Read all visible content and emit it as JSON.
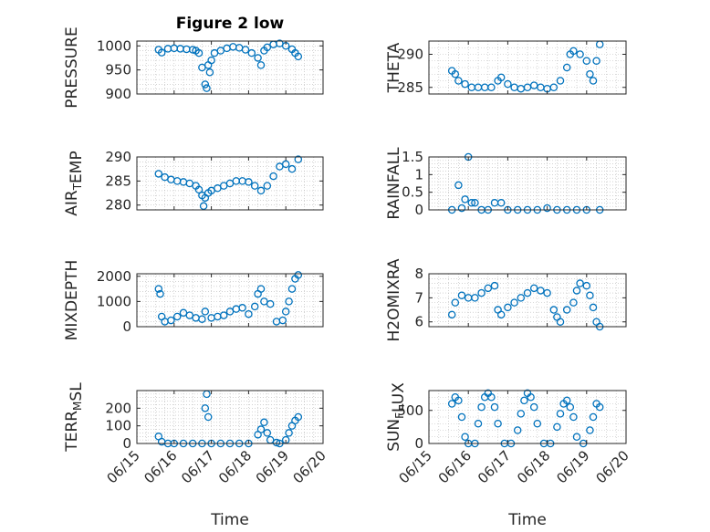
{
  "figure_title": "Figure 2 low",
  "colors": {
    "marker": "#0072BD",
    "axis": "#262626",
    "grid": "#b8b8b8"
  },
  "chart_data": [
    {
      "type": "scatter",
      "ylabel": "PRESSURE",
      "ylim": [
        900,
        1010
      ],
      "yticks": [
        "900",
        "950",
        "1000"
      ],
      "ytick_values": [
        900,
        950,
        1000
      ],
      "x": [
        "06/15 14:00",
        "06/15 16:00",
        "06/15 20:00",
        "06/16 00:00",
        "06/16 04:00",
        "06/16 08:00",
        "06/16 12:00",
        "06/16 14:00",
        "06/16 16:00",
        "06/16 18:00",
        "06/16 20:00",
        "06/16 21:00",
        "06/16 22:00",
        "06/16 23:00",
        "06/17 00:00",
        "06/17 02:00",
        "06/17 06:00",
        "06/17 10:00",
        "06/17 14:00",
        "06/17 18:00",
        "06/17 22:00",
        "06/18 02:00",
        "06/18 06:00",
        "06/18 08:00",
        "06/18 10:00",
        "06/18 12:00",
        "06/18 16:00",
        "06/18 20:00",
        "06/19 00:00",
        "06/19 04:00",
        "06/19 06:00",
        "06/19 08:00"
      ],
      "y": [
        992,
        986,
        994,
        995,
        994,
        993,
        992,
        990,
        985,
        955,
        920,
        912,
        960,
        945,
        970,
        985,
        990,
        995,
        998,
        996,
        992,
        985,
        975,
        960,
        990,
        997,
        1003,
        1005,
        1000,
        993,
        985,
        978
      ]
    },
    {
      "type": "scatter",
      "ylabel": "THETA",
      "ylim": [
        284,
        292
      ],
      "yticks": [
        "285",
        "290"
      ],
      "ytick_values": [
        285,
        290
      ],
      "x": [
        "06/15 14:00",
        "06/15 16:00",
        "06/15 18:00",
        "06/15 22:00",
        "06/16 02:00",
        "06/16 06:00",
        "06/16 10:00",
        "06/16 14:00",
        "06/16 18:00",
        "06/16 20:00",
        "06/17 00:00",
        "06/17 04:00",
        "06/17 08:00",
        "06/17 12:00",
        "06/17 16:00",
        "06/17 20:00",
        "06/18 00:00",
        "06/18 04:00",
        "06/18 08:00",
        "06/18 12:00",
        "06/18 14:00",
        "06/18 16:00",
        "06/18 20:00",
        "06/19 00:00",
        "06/19 02:00",
        "06/19 04:00",
        "06/19 06:00",
        "06/19 08:00"
      ],
      "y": [
        287.5,
        287,
        286,
        285.5,
        285,
        285,
        285,
        285,
        286,
        286.5,
        285.5,
        285,
        284.8,
        285,
        285.3,
        285,
        284.8,
        285,
        286,
        288,
        290,
        290.5,
        290,
        289,
        287,
        286,
        289,
        291.5
      ]
    },
    {
      "type": "scatter",
      "ylabel": "AIR_TEMP",
      "ylim": [
        279,
        290
      ],
      "yticks": [
        "280",
        "285",
        "290"
      ],
      "ytick_values": [
        280,
        285,
        290
      ],
      "x": [
        "06/15 14:00",
        "06/15 18:00",
        "06/15 22:00",
        "06/16 02:00",
        "06/16 06:00",
        "06/16 10:00",
        "06/16 14:00",
        "06/16 16:00",
        "06/16 18:00",
        "06/16 19:00",
        "06/16 20:00",
        "06/16 22:00",
        "06/17 00:00",
        "06/17 04:00",
        "06/17 08:00",
        "06/17 12:00",
        "06/17 16:00",
        "06/17 20:00",
        "06/18 00:00",
        "06/18 04:00",
        "06/18 08:00",
        "06/18 12:00",
        "06/18 16:00",
        "06/18 20:00",
        "06/19 00:00",
        "06/19 04:00",
        "06/19 08:00"
      ],
      "y": [
        286.5,
        285.8,
        285.3,
        285,
        284.8,
        284.5,
        284,
        283.2,
        282,
        279.8,
        281.5,
        282.5,
        283,
        283.5,
        284,
        284.5,
        285,
        285,
        284.8,
        284,
        283,
        284,
        286,
        288,
        288.5,
        287.5,
        289.5
      ]
    },
    {
      "type": "scatter",
      "ylabel": "RAINFALL",
      "ylim": [
        0,
        1.5
      ],
      "yticks": [
        "0",
        "0.5",
        "1",
        "1.5"
      ],
      "ytick_values": [
        0,
        0.5,
        1,
        1.5
      ],
      "x": [
        "06/15 14:00",
        "06/15 18:00",
        "06/15 20:00",
        "06/15 22:00",
        "06/16 00:00",
        "06/16 02:00",
        "06/16 04:00",
        "06/16 08:00",
        "06/16 12:00",
        "06/16 16:00",
        "06/16 20:00",
        "06/17 00:00",
        "06/17 06:00",
        "06/17 12:00",
        "06/17 18:00",
        "06/18 00:00",
        "06/18 06:00",
        "06/18 12:00",
        "06/18 18:00",
        "06/19 00:00",
        "06/19 08:00"
      ],
      "y": [
        0,
        0.7,
        0.05,
        0.3,
        1.5,
        0.2,
        0.2,
        0,
        0,
        0.2,
        0.2,
        0,
        0,
        0,
        0,
        0.05,
        0,
        0,
        0,
        0,
        0
      ]
    },
    {
      "type": "scatter",
      "ylabel": "MIXDEPTH",
      "ylim": [
        0,
        2100
      ],
      "yticks": [
        "0",
        "1000",
        "2000"
      ],
      "ytick_values": [
        0,
        1000,
        2000
      ],
      "x": [
        "06/15 14:00",
        "06/15 15:00",
        "06/15 16:00",
        "06/15 18:00",
        "06/15 22:00",
        "06/16 02:00",
        "06/16 06:00",
        "06/16 10:00",
        "06/16 14:00",
        "06/16 18:00",
        "06/16 20:00",
        "06/17 00:00",
        "06/17 04:00",
        "06/17 08:00",
        "06/17 12:00",
        "06/17 16:00",
        "06/17 20:00",
        "06/18 00:00",
        "06/18 04:00",
        "06/18 06:00",
        "06/18 08:00",
        "06/18 10:00",
        "06/18 14:00",
        "06/18 18:00",
        "06/18 22:00",
        "06/19 00:00",
        "06/19 02:00",
        "06/19 04:00",
        "06/19 06:00",
        "06/19 08:00"
      ],
      "y": [
        1500,
        1300,
        400,
        200,
        250,
        400,
        550,
        450,
        350,
        300,
        600,
        350,
        400,
        450,
        600,
        700,
        750,
        500,
        800,
        1300,
        1500,
        1000,
        900,
        200,
        250,
        600,
        1000,
        1500,
        1900,
        2050
      ]
    },
    {
      "type": "scatter",
      "ylabel": "H2OMIXRA",
      "ylim": [
        5.8,
        8
      ],
      "yticks": [
        "6",
        "7",
        "8"
      ],
      "ytick_values": [
        6,
        7,
        8
      ],
      "x": [
        "06/15 14:00",
        "06/15 16:00",
        "06/15 20:00",
        "06/16 00:00",
        "06/16 04:00",
        "06/16 08:00",
        "06/16 12:00",
        "06/16 16:00",
        "06/16 18:00",
        "06/16 20:00",
        "06/17 00:00",
        "06/17 04:00",
        "06/17 08:00",
        "06/17 12:00",
        "06/17 16:00",
        "06/17 20:00",
        "06/18 00:00",
        "06/18 04:00",
        "06/18 06:00",
        "06/18 08:00",
        "06/18 12:00",
        "06/18 16:00",
        "06/18 18:00",
        "06/18 20:00",
        "06/19 00:00",
        "06/19 02:00",
        "06/19 04:00",
        "06/19 06:00",
        "06/19 08:00"
      ],
      "y": [
        6.3,
        6.8,
        7.1,
        7,
        7,
        7.2,
        7.4,
        7.5,
        6.5,
        6.3,
        6.6,
        6.8,
        7,
        7.2,
        7.4,
        7.3,
        7.2,
        6.5,
        6.2,
        6.0,
        6.5,
        6.8,
        7.3,
        7.6,
        7.5,
        7.1,
        6.6,
        6.0,
        5.8
      ]
    },
    {
      "type": "scatter",
      "ylabel": "TERR_MSL",
      "ylim": [
        0,
        300
      ],
      "yticks": [
        "0",
        "100",
        "200"
      ],
      "ytick_values": [
        0,
        100,
        200
      ],
      "x": [
        "06/15 14:00",
        "06/15 16:00",
        "06/15 20:00",
        "06/16 00:00",
        "06/16 06:00",
        "06/16 12:00",
        "06/16 18:00",
        "06/16 20:00",
        "06/16 21:00",
        "06/16 22:00",
        "06/17 00:00",
        "06/17 06:00",
        "06/17 12:00",
        "06/17 18:00",
        "06/18 00:00",
        "06/18 06:00",
        "06/18 08:00",
        "06/18 10:00",
        "06/18 12:00",
        "06/18 14:00",
        "06/18 18:00",
        "06/18 20:00",
        "06/19 00:00",
        "06/19 02:00",
        "06/19 04:00",
        "06/19 06:00",
        "06/19 08:00"
      ],
      "y": [
        40,
        10,
        0,
        0,
        0,
        0,
        0,
        200,
        280,
        150,
        0,
        0,
        0,
        0,
        0,
        50,
        80,
        120,
        60,
        20,
        5,
        0,
        20,
        60,
        100,
        130,
        150
      ]
    },
    {
      "type": "scatter",
      "ylabel": "SUN_FLUX",
      "ylim": [
        0,
        800
      ],
      "yticks": [
        "0",
        "500"
      ],
      "ytick_values": [
        0,
        500
      ],
      "x": [
        "06/15 14:00",
        "06/15 16:00",
        "06/15 18:00",
        "06/15 20:00",
        "06/15 22:00",
        "06/16 00:00",
        "06/16 04:00",
        "06/16 06:00",
        "06/16 08:00",
        "06/16 10:00",
        "06/16 12:00",
        "06/16 14:00",
        "06/16 16:00",
        "06/16 18:00",
        "06/16 22:00",
        "06/17 02:00",
        "06/17 06:00",
        "06/17 08:00",
        "06/17 10:00",
        "06/17 12:00",
        "06/17 14:00",
        "06/17 16:00",
        "06/17 18:00",
        "06/17 22:00",
        "06/18 02:00",
        "06/18 06:00",
        "06/18 08:00",
        "06/18 10:00",
        "06/18 12:00",
        "06/18 14:00",
        "06/18 16:00",
        "06/18 18:00",
        "06/18 22:00",
        "06/19 02:00",
        "06/19 04:00",
        "06/19 06:00",
        "06/19 08:00"
      ],
      "y": [
        600,
        700,
        650,
        400,
        100,
        0,
        0,
        300,
        550,
        700,
        760,
        700,
        550,
        300,
        0,
        0,
        200,
        450,
        650,
        760,
        700,
        550,
        300,
        0,
        0,
        250,
        450,
        600,
        650,
        550,
        400,
        100,
        0,
        200,
        400,
        600,
        550
      ]
    }
  ],
  "x_axis": {
    "ticks": [
      "06/15",
      "06/16",
      "06/17",
      "06/18",
      "06/19",
      "06/20"
    ],
    "tick_dates": [
      "06/15 00:00",
      "06/16 00:00",
      "06/17 00:00",
      "06/18 00:00",
      "06/19 00:00",
      "06/20 00:00"
    ],
    "label": "Time"
  }
}
